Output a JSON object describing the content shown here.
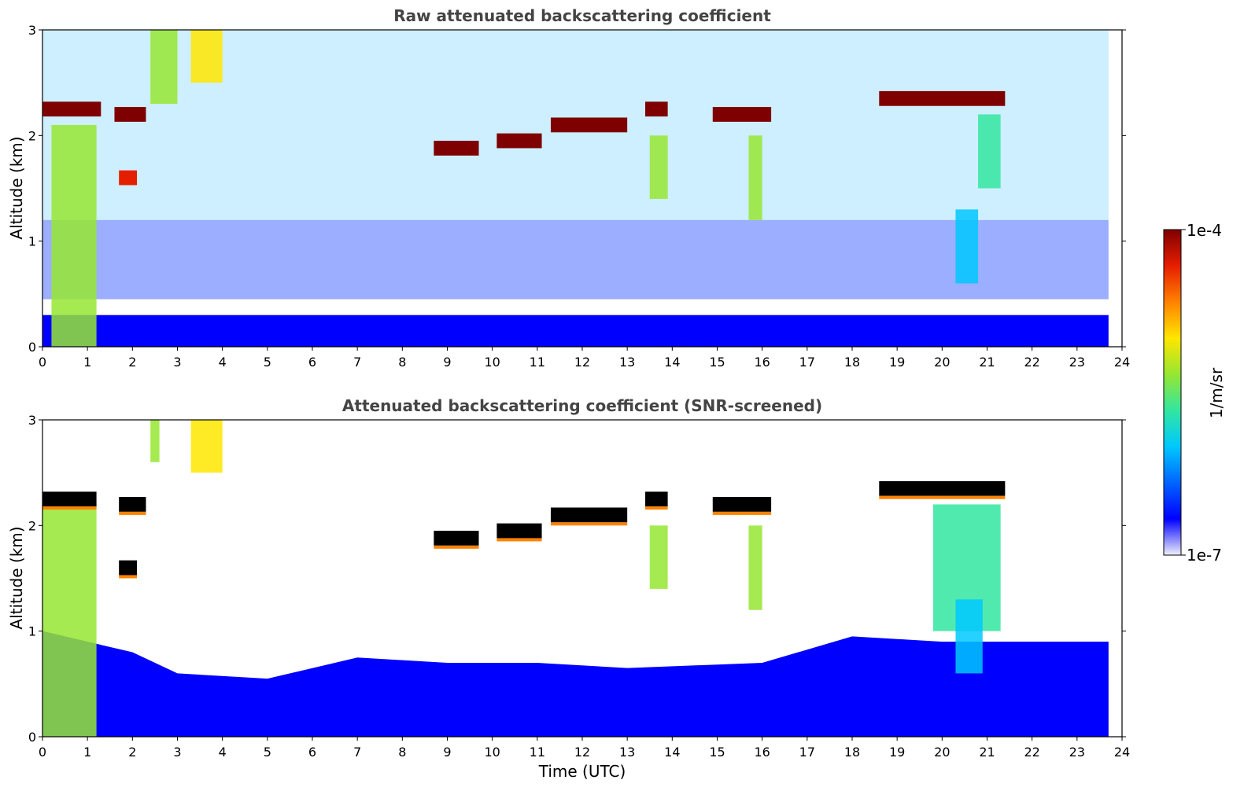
{
  "colors": {
    "colormap": [
      "#f0f0fa",
      "#0000ff",
      "#0064ff",
      "#00c8ff",
      "#32e6a0",
      "#96e632",
      "#ffe600",
      "#ff8200",
      "#e61e00",
      "#7f0000"
    ],
    "screened_top": "#000000",
    "background": "#ffffff"
  },
  "chart_data": [
    {
      "type": "heatmap",
      "title": "Raw attenuated backscattering coefficient",
      "ylabel": "Altitude (km)",
      "xlabel": "",
      "xlim": [
        0,
        24
      ],
      "ylim": [
        0,
        3
      ],
      "xticks": [
        "0",
        "1",
        "2",
        "3",
        "4",
        "5",
        "6",
        "7",
        "8",
        "9",
        "10",
        "11",
        "12",
        "13",
        "14",
        "15",
        "16",
        "17",
        "18",
        "19",
        "20",
        "21",
        "22",
        "23",
        "24"
      ],
      "yticks": [
        "0",
        "1",
        "2",
        "3"
      ],
      "cloud_layers": [
        {
          "t_start": 0.0,
          "t_end": 1.3,
          "altitude_km": 2.25,
          "level": 1.0
        },
        {
          "t_start": 1.6,
          "t_end": 2.3,
          "altitude_km": 2.2,
          "level": 1.0
        },
        {
          "t_start": 1.7,
          "t_end": 2.1,
          "altitude_km": 1.6,
          "level": 0.9
        },
        {
          "t_start": 8.7,
          "t_end": 9.7,
          "altitude_km": 1.88,
          "level": 0.95
        },
        {
          "t_start": 10.1,
          "t_end": 11.1,
          "altitude_km": 1.95,
          "level": 0.95
        },
        {
          "t_start": 11.3,
          "t_end": 13.0,
          "altitude_km": 2.1,
          "level": 0.95
        },
        {
          "t_start": 13.4,
          "t_end": 13.9,
          "altitude_km": 2.25,
          "level": 1.0
        },
        {
          "t_start": 14.9,
          "t_end": 16.2,
          "altitude_km": 2.2,
          "level": 1.0
        },
        {
          "t_start": 18.6,
          "t_end": 21.4,
          "altitude_km": 2.35,
          "level": 1.0
        }
      ],
      "fall_streaks": [
        {
          "t_start": 0.2,
          "t_end": 1.2,
          "top_km": 2.1,
          "bottom_km": 0.0,
          "level": 0.55
        },
        {
          "t_start": 2.4,
          "t_end": 3.0,
          "top_km": 3.0,
          "bottom_km": 2.3,
          "level": 0.6
        },
        {
          "t_start": 3.3,
          "t_end": 4.0,
          "top_km": 3.0,
          "bottom_km": 2.5,
          "level": 0.7
        },
        {
          "t_start": 13.5,
          "t_end": 13.9,
          "top_km": 2.0,
          "bottom_km": 1.4,
          "level": 0.55
        },
        {
          "t_start": 15.7,
          "t_end": 16.0,
          "top_km": 2.0,
          "bottom_km": 1.2,
          "level": 0.55
        },
        {
          "t_start": 20.3,
          "t_end": 20.8,
          "top_km": 1.3,
          "bottom_km": 0.6,
          "level": 0.35
        },
        {
          "t_start": 20.8,
          "t_end": 21.3,
          "top_km": 2.2,
          "bottom_km": 1.5,
          "level": 0.4
        }
      ],
      "boundary_layer_top_km": 0.3
    },
    {
      "type": "heatmap",
      "title": "Attenuated backscattering coefficient (SNR-screened)",
      "ylabel": "Altitude (km)",
      "xlabel": "Time (UTC)",
      "xlim": [
        0,
        24
      ],
      "ylim": [
        0,
        3
      ],
      "xticks": [
        "0",
        "1",
        "2",
        "3",
        "4",
        "5",
        "6",
        "7",
        "8",
        "9",
        "10",
        "11",
        "12",
        "13",
        "14",
        "15",
        "16",
        "17",
        "18",
        "19",
        "20",
        "21",
        "22",
        "23",
        "24"
      ],
      "yticks": [
        "0",
        "1",
        "2",
        "3"
      ],
      "cloud_layers": [
        {
          "t_start": 0.0,
          "t_end": 1.2,
          "altitude_km": 2.25,
          "level": 1.0
        },
        {
          "t_start": 1.7,
          "t_end": 2.3,
          "altitude_km": 2.2,
          "level": 1.0
        },
        {
          "t_start": 1.7,
          "t_end": 2.1,
          "altitude_km": 1.6,
          "level": 1.0
        },
        {
          "t_start": 8.7,
          "t_end": 9.7,
          "altitude_km": 1.88,
          "level": 1.0
        },
        {
          "t_start": 10.1,
          "t_end": 11.1,
          "altitude_km": 1.95,
          "level": 1.0
        },
        {
          "t_start": 11.3,
          "t_end": 13.0,
          "altitude_km": 2.1,
          "level": 1.0
        },
        {
          "t_start": 13.4,
          "t_end": 13.9,
          "altitude_km": 2.25,
          "level": 1.0
        },
        {
          "t_start": 14.9,
          "t_end": 16.2,
          "altitude_km": 2.2,
          "level": 1.0
        },
        {
          "t_start": 18.6,
          "t_end": 21.4,
          "altitude_km": 2.35,
          "level": 1.0
        }
      ],
      "fall_streaks": [
        {
          "t_start": 0.0,
          "t_end": 1.2,
          "top_km": 2.2,
          "bottom_km": 0.0,
          "level": 0.55
        },
        {
          "t_start": 2.4,
          "t_end": 2.6,
          "top_km": 3.0,
          "bottom_km": 2.6,
          "level": 0.6
        },
        {
          "t_start": 3.3,
          "t_end": 4.0,
          "top_km": 3.0,
          "bottom_km": 2.5,
          "level": 0.7
        },
        {
          "t_start": 13.5,
          "t_end": 13.9,
          "top_km": 2.0,
          "bottom_km": 1.4,
          "level": 0.55
        },
        {
          "t_start": 15.7,
          "t_end": 16.0,
          "top_km": 2.0,
          "bottom_km": 1.2,
          "level": 0.55
        },
        {
          "t_start": 19.8,
          "t_end": 21.3,
          "top_km": 2.2,
          "bottom_km": 1.0,
          "level": 0.4
        },
        {
          "t_start": 20.3,
          "t_end": 20.9,
          "top_km": 1.3,
          "bottom_km": 0.6,
          "level": 0.3
        }
      ],
      "boundary_layer_top_km": [
        {
          "t": 0,
          "km": 1.0
        },
        {
          "t": 2,
          "km": 0.8
        },
        {
          "t": 3,
          "km": 0.6
        },
        {
          "t": 5,
          "km": 0.55
        },
        {
          "t": 7,
          "km": 0.75
        },
        {
          "t": 9,
          "km": 0.7
        },
        {
          "t": 11,
          "km": 0.7
        },
        {
          "t": 13,
          "km": 0.65
        },
        {
          "t": 16,
          "km": 0.7
        },
        {
          "t": 18,
          "km": 0.95
        },
        {
          "t": 20,
          "km": 0.9
        },
        {
          "t": 23.7,
          "km": 0.9
        }
      ]
    }
  ],
  "colorbar": {
    "label": "1/m/sr",
    "max_label": "1e-4",
    "min_label": "1e-7"
  }
}
